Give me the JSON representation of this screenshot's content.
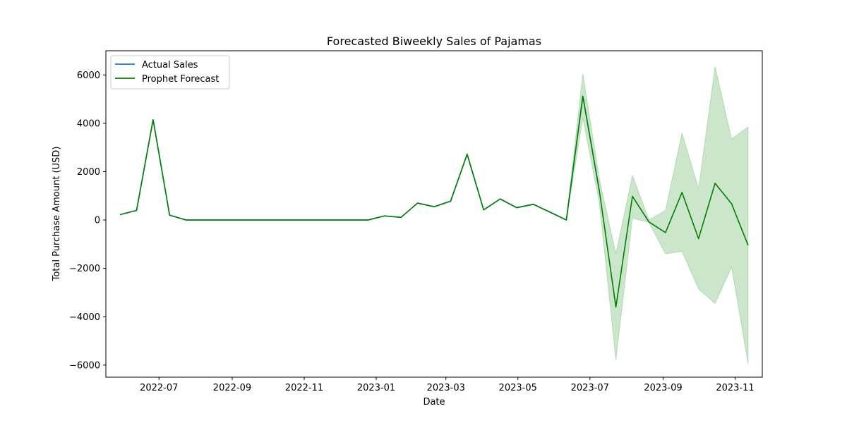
{
  "chart_data": {
    "type": "line",
    "title": "Forecasted Biweekly Sales of Pajamas",
    "xlabel": "Date",
    "ylabel": "Total Purchase Amount (USD)",
    "xlim": [
      "2022-05-17",
      "2023-11-24"
    ],
    "ylim": [
      -6500,
      7000
    ],
    "x_ticks": [
      "2022-07",
      "2022-09",
      "2022-11",
      "2023-01",
      "2023-03",
      "2023-05",
      "2023-07",
      "2023-09",
      "2023-11"
    ],
    "y_ticks": [
      -6000,
      -4000,
      -2000,
      0,
      2000,
      4000,
      6000
    ],
    "grid": false,
    "legend_position": "upper left",
    "series": [
      {
        "name": "Actual Sales",
        "color": "#1f77b4",
        "x": [
          "2022-05-29",
          "2022-06-12",
          "2022-06-26",
          "2022-07-10",
          "2022-07-24",
          "2022-08-07",
          "2022-08-21",
          "2022-09-04",
          "2022-09-18",
          "2022-10-02",
          "2022-10-16",
          "2022-10-30",
          "2022-11-13",
          "2022-11-27",
          "2022-12-11",
          "2022-12-25",
          "2023-01-08",
          "2023-01-22",
          "2023-02-05",
          "2023-02-19",
          "2023-03-05",
          "2023-03-19",
          "2023-04-02",
          "2023-04-16",
          "2023-04-30",
          "2023-05-14",
          "2023-05-28",
          "2023-06-11",
          "2023-06-25",
          "2023-07-09"
        ],
        "values": [
          220,
          400,
          4150,
          200,
          0,
          0,
          0,
          0,
          0,
          0,
          0,
          0,
          0,
          0,
          0,
          0,
          170,
          110,
          700,
          550,
          780,
          2720,
          420,
          870,
          510,
          650,
          330,
          0,
          5120,
          1200
        ]
      },
      {
        "name": "Prophet Forecast",
        "color": "#008000",
        "x": [
          "2022-05-29",
          "2022-06-12",
          "2022-06-26",
          "2022-07-10",
          "2022-07-24",
          "2022-08-07",
          "2022-08-21",
          "2022-09-04",
          "2022-09-18",
          "2022-10-02",
          "2022-10-16",
          "2022-10-30",
          "2022-11-13",
          "2022-11-27",
          "2022-12-11",
          "2022-12-25",
          "2023-01-08",
          "2023-01-22",
          "2023-02-05",
          "2023-02-19",
          "2023-03-05",
          "2023-03-19",
          "2023-04-02",
          "2023-04-16",
          "2023-04-30",
          "2023-05-14",
          "2023-05-28",
          "2023-06-11",
          "2023-06-25",
          "2023-07-09",
          "2023-07-23",
          "2023-08-06",
          "2023-08-20",
          "2023-09-03",
          "2023-09-17",
          "2023-10-01",
          "2023-10-15",
          "2023-10-29",
          "2023-11-12"
        ],
        "values": [
          220,
          400,
          4150,
          200,
          0,
          0,
          0,
          0,
          0,
          0,
          0,
          0,
          0,
          0,
          0,
          0,
          170,
          110,
          700,
          550,
          780,
          2720,
          420,
          870,
          510,
          650,
          330,
          0,
          5120,
          1200,
          -3600,
          980,
          -80,
          -520,
          1140,
          -770,
          1520,
          670,
          -1050
        ],
        "lower": [
          220,
          400,
          4150,
          200,
          0,
          0,
          0,
          0,
          0,
          0,
          0,
          0,
          0,
          0,
          0,
          0,
          170,
          110,
          700,
          550,
          780,
          2720,
          420,
          870,
          510,
          650,
          330,
          0,
          4200,
          700,
          -5800,
          80,
          -100,
          -1400,
          -1300,
          -2850,
          -3450,
          -1950,
          -5950
        ],
        "upper": [
          220,
          400,
          4150,
          200,
          0,
          0,
          0,
          0,
          0,
          0,
          0,
          0,
          0,
          0,
          0,
          0,
          170,
          110,
          700,
          550,
          780,
          2720,
          420,
          870,
          510,
          650,
          330,
          0,
          6050,
          1700,
          -1400,
          1850,
          0,
          400,
          3600,
          1300,
          6350,
          3350,
          3850
        ],
        "band_color": "#008000"
      }
    ]
  }
}
